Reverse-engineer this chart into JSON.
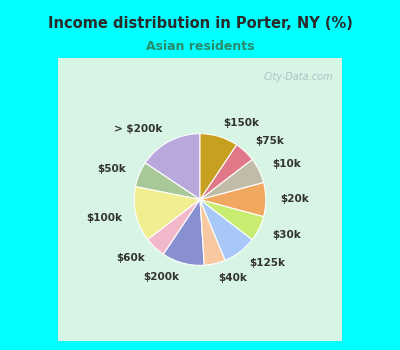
{
  "title": "Income distribution in Porter, NY (%)",
  "subtitle": "Asian residents",
  "title_color": "#2a2a2a",
  "subtitle_color": "#2a8a6a",
  "background_color": "#00ffff",
  "chart_bg_left": "#c8eedd",
  "chart_bg_right": "#e8f8f0",
  "watermark": "City-Data.com",
  "labels": [
    "> $200k",
    "$50k",
    "$100k",
    "$60k",
    "$200k",
    "$40k",
    "$125k",
    "$30k",
    "$20k",
    "$10k",
    "$75k",
    "$150k"
  ],
  "values": [
    15,
    6,
    13,
    5,
    10,
    5,
    8,
    6,
    8,
    6,
    5,
    9
  ],
  "colors": [
    "#b8a8dc",
    "#a8c898",
    "#f0ee90",
    "#f0b8c8",
    "#8890d0",
    "#f8c8a0",
    "#a8c8f8",
    "#c8ec70",
    "#f0a860",
    "#c0bca8",
    "#e07888",
    "#c8a020"
  ],
  "label_fontsize": 7.5,
  "startangle": 90,
  "label_distance": 1.22
}
